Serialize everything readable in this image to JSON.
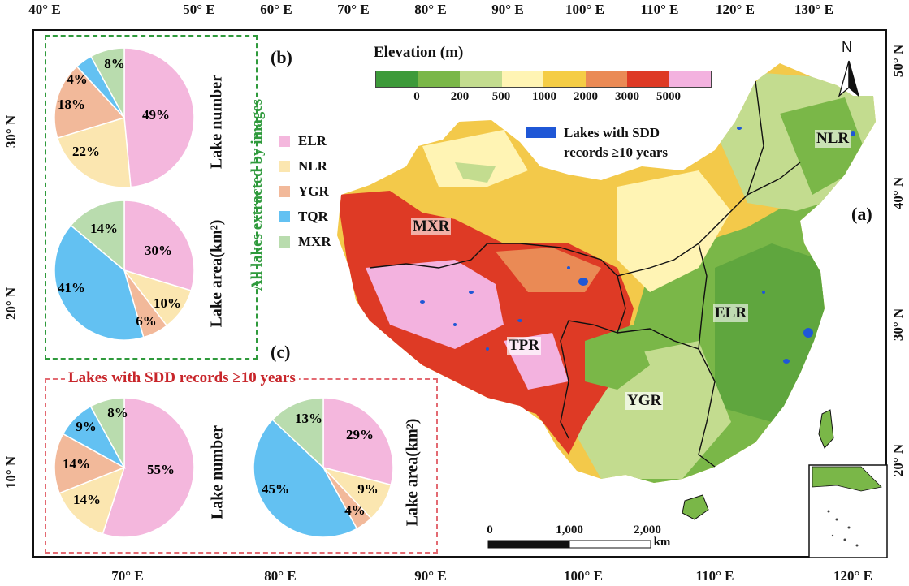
{
  "axis_top": [
    "40° E",
    "50° E",
    "60° E",
    "70° E",
    "80° E",
    "90° E",
    "100° E",
    "110° E",
    "120° E",
    "130° E"
  ],
  "axis_bottom": [
    "70° E",
    "80° E",
    "90° E",
    "100° E",
    "110° E",
    "120° E"
  ],
  "axis_left": [
    "30° N",
    "20° N",
    "10° N"
  ],
  "axis_right": [
    "50° N",
    "40° N",
    "30° N",
    "20° N"
  ],
  "panel_b": {
    "letter": "(b)",
    "vertical_title": "All lakes extracted by images",
    "lake_number_label": "Lake number",
    "lake_area_label": "Lake area(km²)"
  },
  "panel_c": {
    "letter": "(c)",
    "title": "Lakes with SDD records ≥10 years",
    "lake_number_label": "Lake number",
    "lake_area_label": "Lake area(km²)"
  },
  "panel_a": {
    "letter": "(a)"
  },
  "legend": [
    {
      "name": "ELR",
      "color": "#f4b7dd"
    },
    {
      "name": "NLR",
      "color": "#fbe6b0"
    },
    {
      "name": "YGR",
      "color": "#f2b99a"
    },
    {
      "name": "TQR",
      "color": "#63c1f2"
    },
    {
      "name": "MXR",
      "color": "#b9dcae"
    }
  ],
  "elevation": {
    "title": "Elevation (m)",
    "colors": [
      "#3d9a3a",
      "#7ab748",
      "#c3dc8f",
      "#fff4b4",
      "#f5cd45",
      "#ea8a55",
      "#de3a25",
      "#f3b2df"
    ],
    "labels": [
      "0",
      "200",
      "500",
      "1000",
      "2000",
      "3000",
      "5000"
    ]
  },
  "sdd_legend": {
    "line1": "Lakes with SDD",
    "line2": "records ≥10 years",
    "color": "#1f57d6"
  },
  "north_label": "N",
  "regions": [
    "NLR",
    "MXR",
    "ELR",
    "TPR",
    "YGR"
  ],
  "scale": {
    "labels": [
      "0",
      "1,000",
      "2,000"
    ],
    "unit": "km"
  },
  "chart_data": [
    {
      "type": "pie",
      "title": "Lake number",
      "panel": "(b)",
      "categories": [
        "ELR",
        "NLR",
        "YGR",
        "TQR",
        "MXR"
      ],
      "values": [
        49,
        22,
        18,
        4,
        8
      ]
    },
    {
      "type": "pie",
      "title": "Lake area(km²)",
      "panel": "(b)",
      "categories": [
        "ELR",
        "NLR",
        "YGR",
        "TQR",
        "MXR"
      ],
      "values": [
        30,
        10,
        6,
        41,
        14
      ]
    },
    {
      "type": "pie",
      "title": "Lake number",
      "panel": "(c)",
      "categories": [
        "ELR",
        "NLR",
        "YGR",
        "TQR",
        "MXR"
      ],
      "values": [
        55,
        14,
        14,
        9,
        8
      ]
    },
    {
      "type": "pie",
      "title": "Lake area(km²)",
      "panel": "(c)",
      "categories": [
        "ELR",
        "NLR",
        "YGR",
        "TQR",
        "MXR"
      ],
      "values": [
        29,
        9,
        4,
        45,
        13
      ]
    }
  ]
}
